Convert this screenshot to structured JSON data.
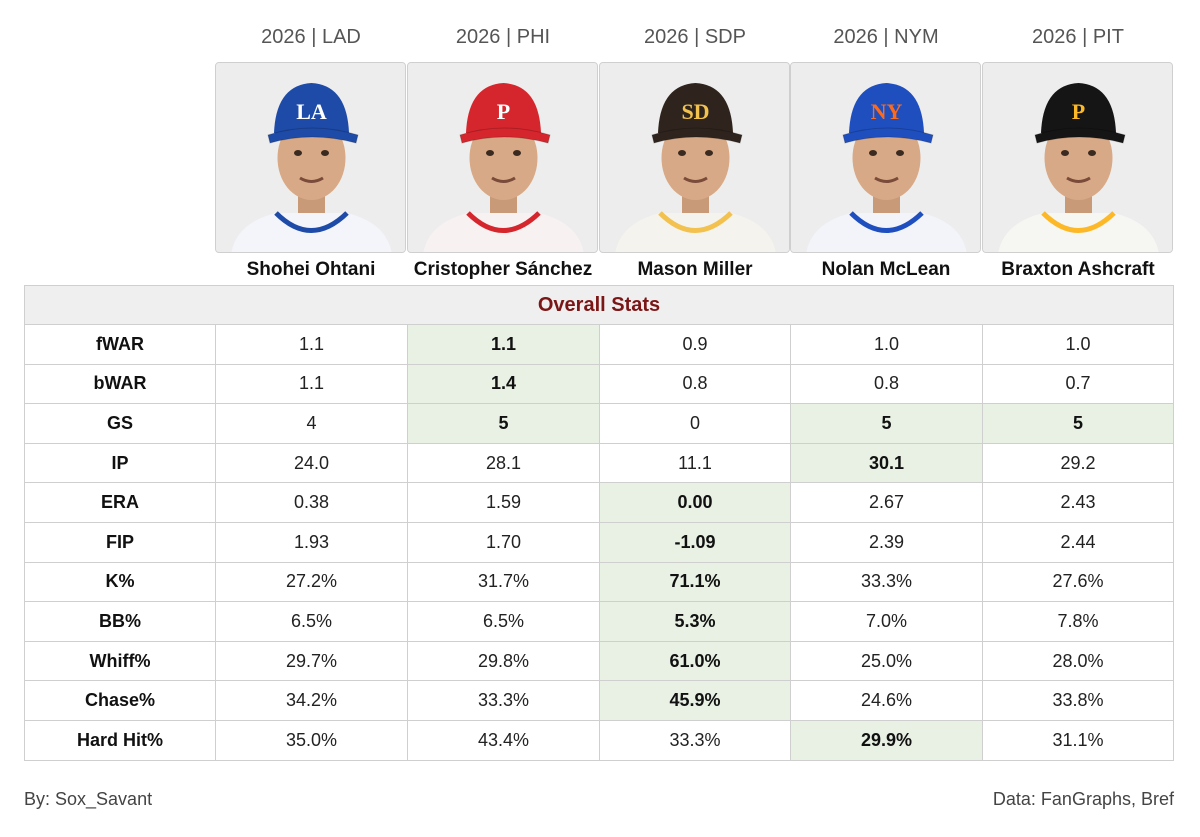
{
  "players": [
    {
      "team_label": "2026 | LAD",
      "name": "Shohei Ohtani",
      "cap_color": "#1e4ba8",
      "logo": "LA",
      "logo_color": "#ffffff",
      "jersey_color": "#f3f5fb",
      "jersey_trim": "#1e4ba8"
    },
    {
      "team_label": "2026 | PHI",
      "name": "Cristopher Sánchez",
      "cap_color": "#d6262d",
      "logo": "P",
      "logo_color": "#ffffff",
      "jersey_color": "#f7f1f1",
      "jersey_trim": "#d6262d"
    },
    {
      "team_label": "2026 | SDP",
      "name": "Mason Miller",
      "cap_color": "#2f241d",
      "logo": "SD",
      "logo_color": "#f2c14e",
      "jersey_color": "#f5f3ee",
      "jersey_trim": "#f2c14e"
    },
    {
      "team_label": "2026 | NYM",
      "name": "Nolan McLean",
      "cap_color": "#1f4fbf",
      "logo": "NY",
      "logo_color": "#ff6a1a",
      "jersey_color": "#f2f4fa",
      "jersey_trim": "#1f4fbf"
    },
    {
      "team_label": "2026 | PIT",
      "name": "Braxton Ashcraft",
      "cap_color": "#151515",
      "logo": "P",
      "logo_color": "#fdb827",
      "jersey_color": "#f6f6f2",
      "jersey_trim": "#fdb827"
    }
  ],
  "section_title": "Overall Stats",
  "highlight_color": "#e8f1e4",
  "rows": [
    {
      "metric": "fWAR",
      "values": [
        "1.1",
        "1.1",
        "0.9",
        "1.0",
        "1.0"
      ],
      "best": [
        1
      ]
    },
    {
      "metric": "bWAR",
      "values": [
        "1.1",
        "1.4",
        "0.8",
        "0.8",
        "0.7"
      ],
      "best": [
        1
      ]
    },
    {
      "metric": "GS",
      "values": [
        "4",
        "5",
        "0",
        "5",
        "5"
      ],
      "best": [
        1,
        3,
        4
      ]
    },
    {
      "metric": "IP",
      "values": [
        "24.0",
        "28.1",
        "11.1",
        "30.1",
        "29.2"
      ],
      "best": [
        3
      ]
    },
    {
      "metric": "ERA",
      "values": [
        "0.38",
        "1.59",
        "0.00",
        "2.67",
        "2.43"
      ],
      "best": [
        2
      ]
    },
    {
      "metric": "FIP",
      "values": [
        "1.93",
        "1.70",
        "-1.09",
        "2.39",
        "2.44"
      ],
      "best": [
        2
      ]
    },
    {
      "metric": "K%",
      "values": [
        "27.2%",
        "31.7%",
        "71.1%",
        "33.3%",
        "27.6%"
      ],
      "best": [
        2
      ]
    },
    {
      "metric": "BB%",
      "values": [
        "6.5%",
        "6.5%",
        "5.3%",
        "7.0%",
        "7.8%"
      ],
      "best": [
        2
      ]
    },
    {
      "metric": "Whiff%",
      "values": [
        "29.7%",
        "29.8%",
        "61.0%",
        "25.0%",
        "28.0%"
      ],
      "best": [
        2
      ]
    },
    {
      "metric": "Chase%",
      "values": [
        "34.2%",
        "33.3%",
        "45.9%",
        "24.6%",
        "33.8%"
      ],
      "best": [
        2
      ]
    },
    {
      "metric": "Hard Hit%",
      "values": [
        "35.0%",
        "43.4%",
        "33.3%",
        "29.9%",
        "31.1%"
      ],
      "best": [
        3
      ]
    }
  ],
  "footer": {
    "credit": "By: Sox_Savant",
    "source": "Data: FanGraphs, Bref"
  }
}
